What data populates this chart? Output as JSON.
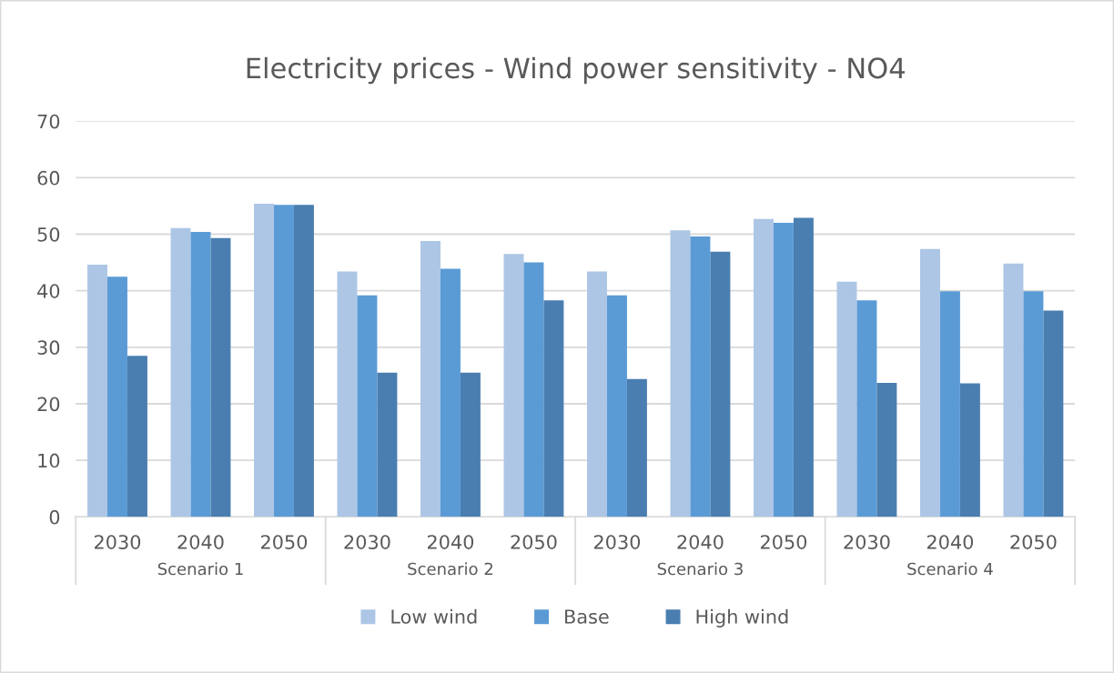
{
  "chart_data": {
    "type": "bar",
    "title": "Electricity prices - Wind power sensitivity - NO4",
    "categories": [
      "2030",
      "2040",
      "2050",
      "2030",
      "2040",
      "2050",
      "2030",
      "2040",
      "2050",
      "2030",
      "2040",
      "2050"
    ],
    "series": [
      {
        "name": "Low wind",
        "color": "#adc6e5",
        "values": [
          44.6,
          51.1,
          55.4,
          43.4,
          48.8,
          46.5,
          43.4,
          50.7,
          52.7,
          41.6,
          47.4,
          44.8
        ]
      },
      {
        "name": "Base",
        "color": "#5b9bd5",
        "values": [
          42.5,
          50.4,
          55.2,
          39.2,
          43.9,
          45.0,
          39.2,
          49.6,
          52.0,
          38.3,
          39.9,
          39.9
        ]
      },
      {
        "name": "High wind",
        "color": "#4a7eb0",
        "values": [
          28.5,
          49.3,
          55.2,
          25.5,
          25.5,
          38.3,
          24.4,
          46.9,
          52.9,
          23.7,
          23.6,
          36.5
        ]
      }
    ],
    "annotations": [
      "Scenario 1",
      "Scenario 2",
      "Scenario 3",
      "Scenario 4"
    ],
    "ylim": [
      0,
      70
    ],
    "yticks": [
      0,
      10,
      20,
      30,
      40,
      50,
      60,
      70
    ],
    "grid": "y",
    "legend": "bottom"
  }
}
